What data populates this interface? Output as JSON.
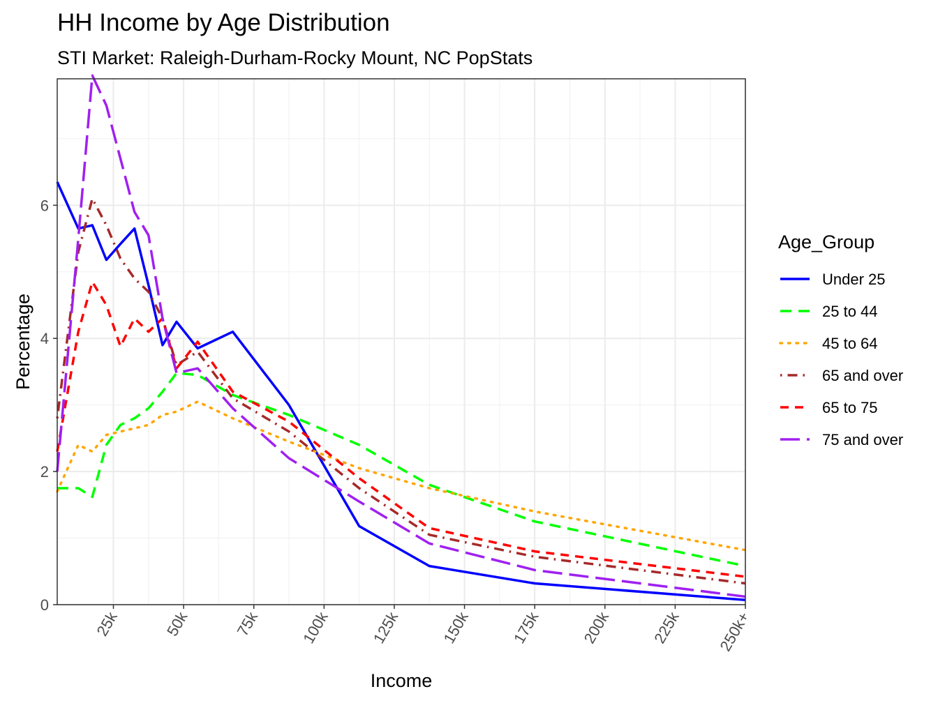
{
  "chart_data": {
    "type": "line",
    "title": "HH Income by Age Distribution",
    "subtitle": "STI Market: Raleigh-Durham-Rocky Mount, NC PopStats",
    "xlabel": "Income",
    "ylabel": "Percentage",
    "xlim": [
      5000,
      250000
    ],
    "ylim": [
      0,
      7.9
    ],
    "x_ticks": [
      {
        "value": 25000,
        "label": "25k"
      },
      {
        "value": 50000,
        "label": "50k"
      },
      {
        "value": 75000,
        "label": "75k"
      },
      {
        "value": 100000,
        "label": "100k"
      },
      {
        "value": 125000,
        "label": "125k"
      },
      {
        "value": 150000,
        "label": "150k"
      },
      {
        "value": 175000,
        "label": "175k"
      },
      {
        "value": 200000,
        "label": "200k"
      },
      {
        "value": 225000,
        "label": "225k"
      },
      {
        "value": 250000,
        "label": "250k+"
      }
    ],
    "y_ticks": [
      {
        "value": 0,
        "label": "0"
      },
      {
        "value": 2,
        "label": "2"
      },
      {
        "value": 4,
        "label": "4"
      },
      {
        "value": 6,
        "label": "6"
      }
    ],
    "grid": true,
    "legend": {
      "title": "Age_Group",
      "position": "right"
    },
    "x": [
      5000,
      12500,
      17500,
      22500,
      27500,
      32500,
      37500,
      42500,
      47500,
      55000,
      67500,
      87500,
      112500,
      137500,
      175000,
      250000
    ],
    "series": [
      {
        "name": "Under 25",
        "color": "#0000FF",
        "dash": "solid",
        "values": [
          6.35,
          5.65,
          5.7,
          5.18,
          5.42,
          5.65,
          4.8,
          3.9,
          4.25,
          3.85,
          4.1,
          3.0,
          1.18,
          0.58,
          0.32,
          0.07
        ]
      },
      {
        "name": "25 to 44",
        "color": "#00FF00",
        "dash": "dashed",
        "values": [
          1.75,
          1.75,
          1.62,
          2.4,
          2.7,
          2.8,
          2.95,
          3.2,
          3.48,
          3.45,
          3.15,
          2.85,
          2.4,
          1.8,
          1.25,
          0.58
        ]
      },
      {
        "name": "45 to 64",
        "color": "#FFA500",
        "dash": "dotted",
        "values": [
          1.7,
          2.4,
          2.3,
          2.55,
          2.6,
          2.65,
          2.7,
          2.85,
          2.9,
          3.05,
          2.8,
          2.45,
          2.05,
          1.75,
          1.4,
          0.82
        ]
      },
      {
        "name": "65 and over",
        "color": "#A52A2A",
        "dash": "dotdash",
        "values": [
          2.8,
          5.3,
          6.1,
          5.7,
          5.2,
          4.9,
          4.7,
          4.3,
          3.6,
          3.8,
          3.1,
          2.6,
          1.75,
          1.05,
          0.72,
          0.32
        ]
      },
      {
        "name": "65 to 75",
        "color": "#FF0000",
        "dash": "shortdash",
        "values": [
          2.3,
          4.1,
          4.85,
          4.5,
          3.88,
          4.3,
          4.1,
          4.3,
          3.55,
          3.95,
          3.2,
          2.75,
          1.9,
          1.15,
          0.8,
          0.42
        ]
      },
      {
        "name": "75 and over",
        "color": "#A020F0",
        "dash": "longdash",
        "values": [
          2.0,
          5.5,
          7.95,
          7.5,
          6.7,
          5.9,
          5.55,
          4.3,
          3.48,
          3.55,
          2.95,
          2.2,
          1.55,
          0.92,
          0.52,
          0.12
        ]
      }
    ]
  }
}
